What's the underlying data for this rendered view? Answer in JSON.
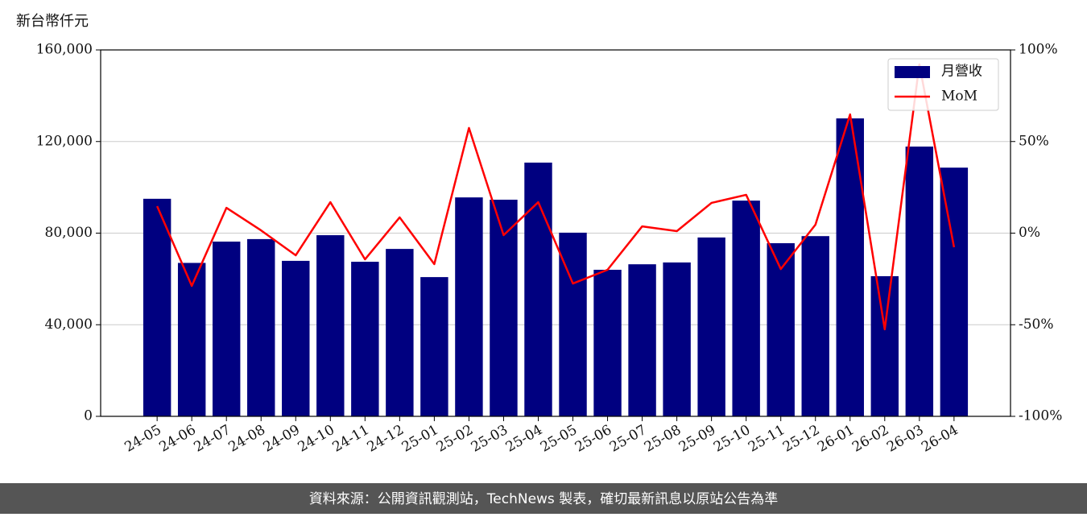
{
  "chart_data": {
    "type": "bar_line",
    "y_axis_label": "新台幣仟元",
    "categories": [
      "24-05",
      "24-06",
      "24-07",
      "24-08",
      "24-09",
      "24-10",
      "24-11",
      "24-12",
      "25-01",
      "25-02",
      "25-03",
      "25-04",
      "25-05",
      "25-06",
      "25-07",
      "25-08",
      "25-09",
      "25-10",
      "25-11",
      "25-12",
      "26-01",
      "26-02",
      "26-03",
      "26-04"
    ],
    "series": [
      {
        "name": "月營收",
        "color": "#000080",
        "type": "bar",
        "values": [
          95000,
          67000,
          76300,
          77400,
          67900,
          79100,
          67500,
          73100,
          60800,
          95600,
          94600,
          110800,
          80200,
          64000,
          66400,
          67200,
          78100,
          94200,
          75600,
          78700,
          130100,
          61200,
          117800,
          108600
        ]
      },
      {
        "name": "MoM",
        "color": "#ff0000",
        "type": "line",
        "axis": "y2",
        "values": [
          14.7,
          -28.8,
          13.8,
          1.5,
          -12.1,
          16.9,
          -14.3,
          8.6,
          -16.9,
          57.4,
          -1.1,
          16.9,
          -27.5,
          -20.0,
          3.7,
          1.1,
          16.5,
          20.9,
          -19.6,
          4.6,
          64.8,
          -52.5,
          92.1,
          -7.7
        ]
      }
    ],
    "ylim": [
      0,
      160000
    ],
    "yticks": [
      0,
      {
        "value": 40000,
        "label": "40,000"
      },
      {
        "value": 80000,
        "label": "80,000"
      },
      {
        "value": 120000,
        "label": "120,000"
      },
      {
        "value": 160000,
        "label": "160,000"
      }
    ],
    "y2lim": [
      -100,
      100
    ],
    "y2ticks": [
      {
        "value": -100,
        "label": "-100%"
      },
      {
        "value": -50,
        "label": "-50%"
      },
      {
        "value": 0,
        "label": "0%"
      },
      {
        "value": 50,
        "label": "50%"
      },
      {
        "value": 100,
        "label": "100%"
      }
    ],
    "grid": true,
    "legend": "upper right",
    "footer": "資料來源：公開資訊觀測站，TechNews 製表，確切最新訊息以原站公告為準"
  }
}
